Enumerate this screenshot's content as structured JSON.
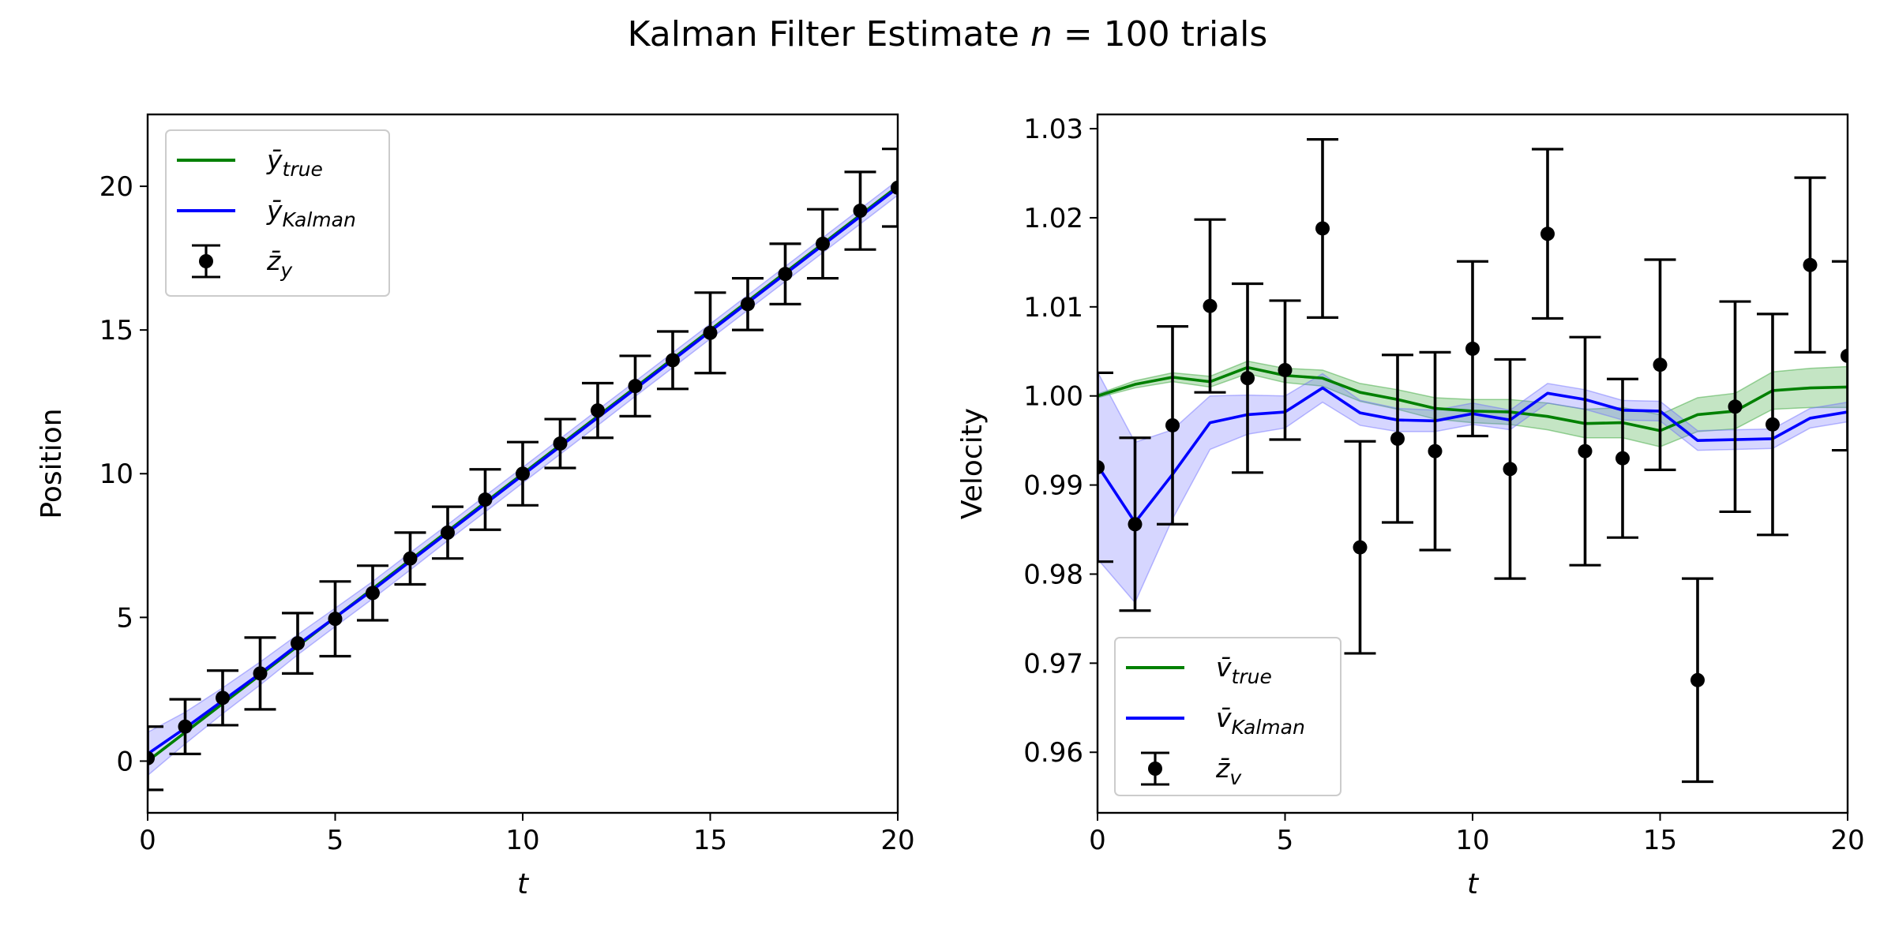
{
  "figure": {
    "title": "Kalman Filter Estimate n = 100 trials",
    "title_parts": {
      "prefix": "Kalman Filter Estimate ",
      "var": "n",
      "suffix": " = 100 trials"
    }
  },
  "colors": {
    "true": "#008000",
    "kalman": "#0000ff",
    "band_true": "#2ca02c",
    "band_kalman": "#6a6aff",
    "measure": "#000000"
  },
  "chart_data": [
    {
      "type": "line",
      "id": "position",
      "xlabel": "t",
      "ylabel": "Position",
      "xlim": [
        0,
        20
      ],
      "ylim": [
        -1.8,
        22.5
      ],
      "xticks": [
        0,
        5,
        10,
        15,
        20
      ],
      "yticks": [
        0,
        5,
        10,
        15,
        20
      ],
      "legend": {
        "placement": "upper left",
        "entries": [
          {
            "base": "ȳ",
            "sub": "true",
            "kind": "line",
            "color_key": "true"
          },
          {
            "base": "ȳ",
            "sub": "Kalman",
            "kind": "line",
            "color_key": "kalman"
          },
          {
            "base": "z̄",
            "sub": "y",
            "kind": "errorbar",
            "color_key": "measure"
          }
        ]
      },
      "x": [
        0,
        1,
        2,
        3,
        4,
        5,
        6,
        7,
        8,
        9,
        10,
        11,
        12,
        13,
        14,
        15,
        16,
        17,
        18,
        19,
        20
      ],
      "series": [
        {
          "name": "ȳ_true",
          "color_key": "true",
          "values": [
            0,
            1,
            2,
            3,
            4,
            5,
            6,
            7,
            8,
            9,
            10,
            11,
            12,
            13,
            14,
            15,
            16,
            17,
            18,
            19,
            20
          ]
        },
        {
          "name": "ȳ_Kalman",
          "color_key": "kalman",
          "values": [
            0.25,
            1.15,
            2.1,
            3.05,
            4.05,
            5.0,
            5.95,
            6.95,
            7.95,
            8.95,
            9.95,
            10.95,
            11.95,
            12.95,
            13.95,
            14.95,
            15.95,
            16.95,
            17.95,
            18.95,
            19.95
          ],
          "band": [
            0.75,
            0.55,
            0.45,
            0.4,
            0.35,
            0.32,
            0.3,
            0.3,
            0.28,
            0.28,
            0.27,
            0.27,
            0.27,
            0.26,
            0.26,
            0.26,
            0.26,
            0.26,
            0.26,
            0.26,
            0.26
          ]
        }
      ],
      "measurements": {
        "name": "z̄_y",
        "y": [
          0.1,
          1.2,
          2.2,
          3.05,
          4.1,
          4.95,
          5.85,
          7.05,
          7.95,
          9.1,
          10.0,
          11.05,
          12.2,
          13.05,
          13.95,
          14.9,
          15.9,
          16.95,
          18.0,
          19.15,
          19.95
        ],
        "err": [
          1.1,
          0.95,
          0.95,
          1.25,
          1.05,
          1.3,
          0.95,
          0.9,
          0.9,
          1.05,
          1.1,
          0.85,
          0.95,
          1.05,
          1.0,
          1.4,
          0.9,
          1.05,
          1.2,
          1.35,
          1.35
        ]
      }
    },
    {
      "type": "line",
      "id": "velocity",
      "xlabel": "t",
      "ylabel": "Velocity",
      "xlim": [
        0,
        20
      ],
      "ylim": [
        0.9532,
        1.0316
      ],
      "xticks": [
        0,
        5,
        10,
        15,
        20
      ],
      "yticks": [
        0.96,
        0.97,
        0.98,
        0.99,
        1.0,
        1.01,
        1.02,
        1.03
      ],
      "ytick_labels": [
        "0.96",
        "0.97",
        "0.98",
        "0.99",
        "1.00",
        "1.01",
        "1.02",
        "1.03"
      ],
      "legend": {
        "placement": "lower left",
        "entries": [
          {
            "base": "v̄",
            "sub": "true",
            "kind": "line",
            "color_key": "true"
          },
          {
            "base": "v̄",
            "sub": "Kalman",
            "kind": "line",
            "color_key": "kalman"
          },
          {
            "base": "z̄",
            "sub": "v",
            "kind": "errorbar",
            "color_key": "measure"
          }
        ]
      },
      "x": [
        0,
        1,
        2,
        3,
        4,
        5,
        6,
        7,
        8,
        9,
        10,
        11,
        12,
        13,
        14,
        15,
        16,
        17,
        18,
        19,
        20
      ],
      "series": [
        {
          "name": "v̄_true",
          "color_key": "true",
          "values": [
            1.0,
            1.0013,
            1.0021,
            1.0016,
            1.0032,
            1.0023,
            1.002,
            1.0004,
            0.9996,
            0.9986,
            0.9983,
            0.9982,
            0.9977,
            0.9969,
            0.997,
            0.9961,
            0.9979,
            0.9983,
            1.0006,
            1.0009,
            1.001
          ],
          "band": [
            0.0002,
            0.0004,
            0.0005,
            0.0006,
            0.0007,
            0.0008,
            0.0009,
            0.001,
            0.0011,
            0.0012,
            0.0013,
            0.0014,
            0.0015,
            0.0016,
            0.0017,
            0.0018,
            0.0019,
            0.002,
            0.0021,
            0.0022,
            0.0023
          ]
        },
        {
          "name": "v̄_Kalman",
          "color_key": "kalman",
          "values": [
            0.9922,
            0.9858,
            0.9912,
            0.997,
            0.9979,
            0.9982,
            1.0009,
            0.9981,
            0.9973,
            0.9972,
            0.998,
            0.9973,
            1.0003,
            0.9996,
            0.9984,
            0.9983,
            0.995,
            0.9951,
            0.9952,
            0.9975,
            0.9982
          ],
          "band": [
            0.0105,
            0.009,
            0.005,
            0.003,
            0.0022,
            0.0018,
            0.0016,
            0.0014,
            0.0013,
            0.0012,
            0.0012,
            0.0011,
            0.0011,
            0.0011,
            0.0011,
            0.0011,
            0.0011,
            0.0011,
            0.0011,
            0.0011,
            0.0011
          ]
        }
      ],
      "measurements": {
        "name": "z̄_v",
        "y": [
          0.992,
          0.9856,
          0.9967,
          1.0101,
          1.002,
          1.0029,
          1.0188,
          0.983,
          0.9952,
          0.9938,
          1.0053,
          0.9918,
          1.0182,
          0.9938,
          0.993,
          1.0035,
          0.9681,
          0.9988,
          0.9968,
          1.0147,
          1.0045
        ],
        "err": [
          0.0106,
          0.0097,
          0.0111,
          0.0097,
          0.0106,
          0.0078,
          0.01,
          0.0119,
          0.0094,
          0.0111,
          0.0098,
          0.0123,
          0.0095,
          0.0128,
          0.0089,
          0.0118,
          0.0114,
          0.0118,
          0.0124,
          0.0098,
          0.0106
        ]
      }
    }
  ]
}
